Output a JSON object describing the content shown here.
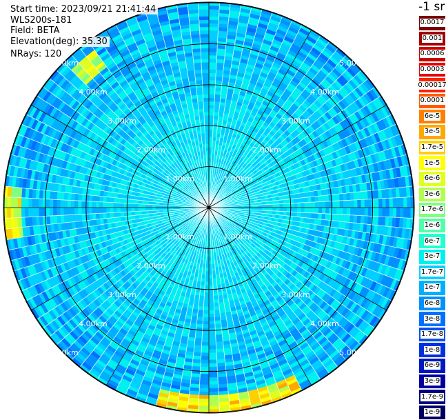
{
  "info": {
    "start_time": "Start time: 2023/09/21 21:41:44",
    "device": "WLS200s-181",
    "field": "Field: BETA",
    "elevation": "Elevation(deg): 35.30",
    "nrays": "NRays: 120"
  },
  "unit": "-1 sr",
  "legend": [
    {
      "label": "0.0017",
      "color": "#7a0000"
    },
    {
      "label": "0.001",
      "color": "#a00000"
    },
    {
      "label": "0.0006",
      "color": "#c80000"
    },
    {
      "label": "0.0003",
      "color": "#e60000"
    },
    {
      "label": "0.00017",
      "color": "#ff2200"
    },
    {
      "label": "0.0001",
      "color": "#ff5a00"
    },
    {
      "label": "6e-5",
      "color": "#ff8000"
    },
    {
      "label": "3e-5",
      "color": "#ffa800"
    },
    {
      "label": "1.7e-5",
      "color": "#ffd000"
    },
    {
      "label": "1e-5",
      "color": "#ffff00"
    },
    {
      "label": "6e-6",
      "color": "#e0ff20"
    },
    {
      "label": "3e-6",
      "color": "#b0ff50"
    },
    {
      "label": "1.7e-6",
      "color": "#80ff80"
    },
    {
      "label": "1e-6",
      "color": "#50ffa8"
    },
    {
      "label": "6e-7",
      "color": "#20ffd0"
    },
    {
      "label": "3e-7",
      "color": "#00f0f0"
    },
    {
      "label": "1.7e-7",
      "color": "#00d0ff"
    },
    {
      "label": "1e-7",
      "color": "#00b0ff"
    },
    {
      "label": "6e-8",
      "color": "#0090ff"
    },
    {
      "label": "3e-8",
      "color": "#0070ff"
    },
    {
      "label": "1.7e-8",
      "color": "#0050f0"
    },
    {
      "label": "1e-8",
      "color": "#0030e0"
    },
    {
      "label": "6e-9",
      "color": "#0018c0"
    },
    {
      "label": "3e-9",
      "color": "#0000a0"
    },
    {
      "label": "1.7e-9",
      "color": "#000080"
    },
    {
      "label": "1e-9",
      "color": "#000060"
    }
  ],
  "range_rings": [
    {
      "label": "1.00km",
      "km": 1
    },
    {
      "label": "2.00km",
      "km": 2
    },
    {
      "label": "3.00km",
      "km": 3
    },
    {
      "label": "4.00km",
      "km": 4
    },
    {
      "label": "5.00km",
      "km": 5
    }
  ],
  "n_rays": 120,
  "colors": {
    "background": "#ffffff",
    "base": "#00b4f0",
    "grid": "#000000",
    "beam_gap": "#ffffff"
  }
}
